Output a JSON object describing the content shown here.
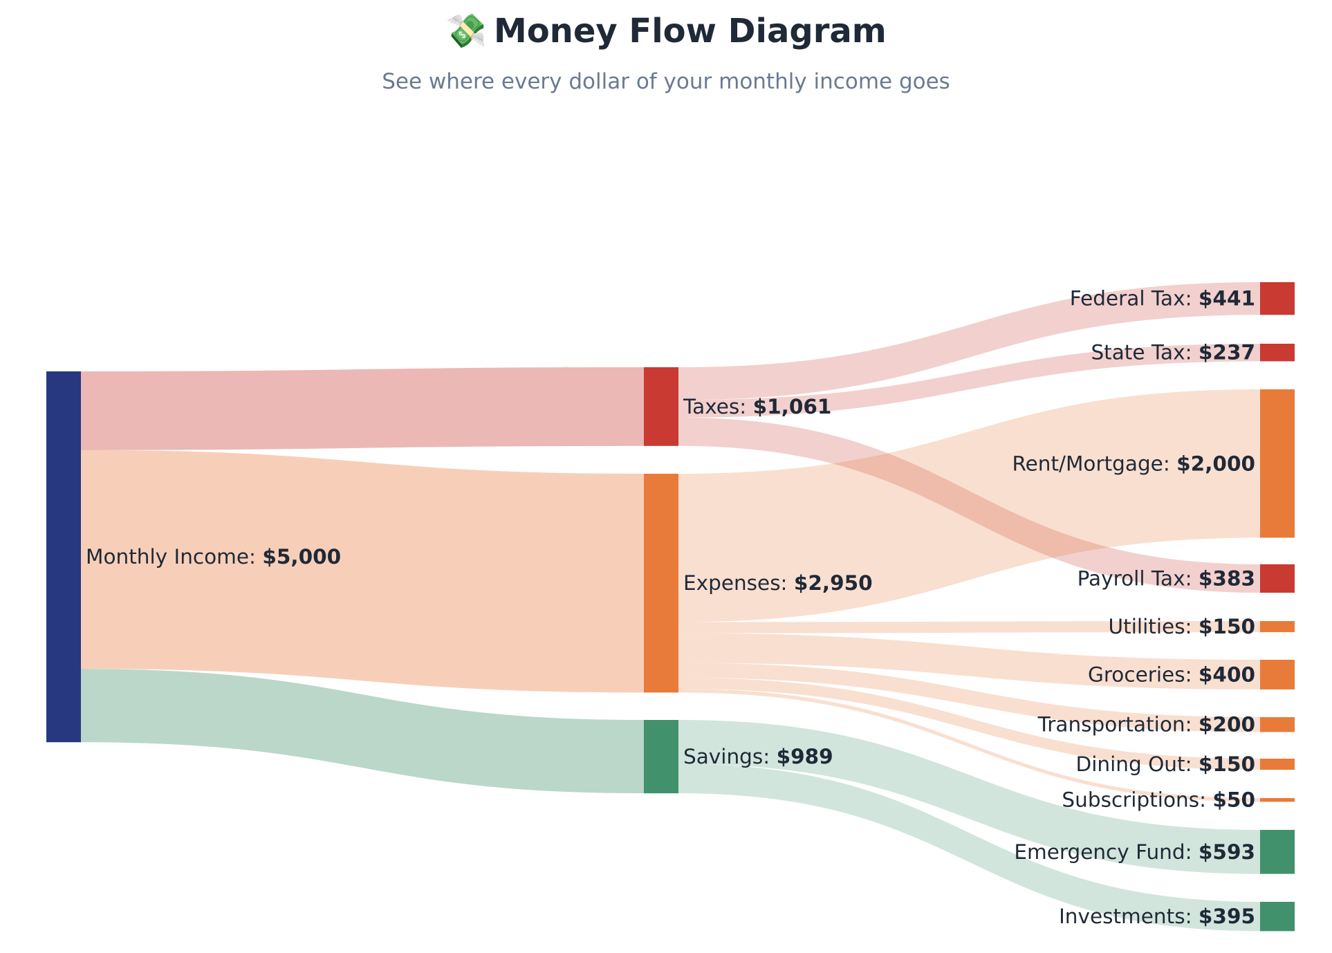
{
  "header": {
    "emoji": "💸",
    "title": "Money Flow Diagram",
    "subtitle": "See where every dollar of your monthly income goes"
  },
  "colors": {
    "income": "#283880",
    "taxes": "#c83a32",
    "expenses": "#e87b39",
    "savings": "#40916c"
  },
  "chart_data": {
    "type": "sankey",
    "title": "Money Flow Diagram",
    "subtitle": "See where every dollar of your monthly income goes",
    "nodes": [
      {
        "id": "income",
        "name": "Monthly Income",
        "value_label": "$5,000",
        "value": 5000,
        "column": 0,
        "color": "#283880"
      },
      {
        "id": "taxes",
        "name": "Taxes",
        "value_label": "$1,061",
        "value": 1061,
        "column": 1,
        "color": "#c83a32"
      },
      {
        "id": "expenses",
        "name": "Expenses",
        "value_label": "$2,950",
        "value": 2950,
        "column": 1,
        "color": "#e87b39"
      },
      {
        "id": "savings",
        "name": "Savings",
        "value_label": "$989",
        "value": 989,
        "column": 1,
        "color": "#40916c"
      },
      {
        "id": "federal",
        "name": "Federal Tax",
        "value_label": "$441",
        "value": 441,
        "column": 2,
        "color": "#c83a32"
      },
      {
        "id": "state",
        "name": "State Tax",
        "value_label": "$237",
        "value": 237,
        "column": 2,
        "color": "#c83a32"
      },
      {
        "id": "rent",
        "name": "Rent/Mortgage",
        "value_label": "$2,000",
        "value": 2000,
        "column": 2,
        "color": "#e87b39"
      },
      {
        "id": "payroll",
        "name": "Payroll Tax",
        "value_label": "$383",
        "value": 383,
        "column": 2,
        "color": "#c83a32"
      },
      {
        "id": "utilities",
        "name": "Utilities",
        "value_label": "$150",
        "value": 150,
        "column": 2,
        "color": "#e87b39"
      },
      {
        "id": "groceries",
        "name": "Groceries",
        "value_label": "$400",
        "value": 400,
        "column": 2,
        "color": "#e87b39"
      },
      {
        "id": "transport",
        "name": "Transportation",
        "value_label": "$200",
        "value": 200,
        "column": 2,
        "color": "#e87b39"
      },
      {
        "id": "dining",
        "name": "Dining Out",
        "value_label": "$150",
        "value": 150,
        "column": 2,
        "color": "#e87b39"
      },
      {
        "id": "subs",
        "name": "Subscriptions",
        "value_label": "$50",
        "value": 50,
        "column": 2,
        "color": "#e87b39"
      },
      {
        "id": "emergency",
        "name": "Emergency Fund",
        "value_label": "$593",
        "value": 593,
        "column": 2,
        "color": "#40916c"
      },
      {
        "id": "invest",
        "name": "Investments",
        "value_label": "$395",
        "value": 395,
        "column": 2,
        "color": "#40916c"
      }
    ],
    "links": [
      {
        "source": "income",
        "target": "taxes",
        "value": 1061
      },
      {
        "source": "income",
        "target": "expenses",
        "value": 2950
      },
      {
        "source": "income",
        "target": "savings",
        "value": 989
      },
      {
        "source": "taxes",
        "target": "federal",
        "value": 441
      },
      {
        "source": "taxes",
        "target": "state",
        "value": 237
      },
      {
        "source": "taxes",
        "target": "payroll",
        "value": 383
      },
      {
        "source": "expenses",
        "target": "rent",
        "value": 2000
      },
      {
        "source": "expenses",
        "target": "utilities",
        "value": 150
      },
      {
        "source": "expenses",
        "target": "groceries",
        "value": 400
      },
      {
        "source": "expenses",
        "target": "transport",
        "value": 200
      },
      {
        "source": "expenses",
        "target": "dining",
        "value": 150
      },
      {
        "source": "expenses",
        "target": "subs",
        "value": 50
      },
      {
        "source": "savings",
        "target": "emergency",
        "value": 593
      },
      {
        "source": "savings",
        "target": "invest",
        "value": 395
      }
    ]
  }
}
